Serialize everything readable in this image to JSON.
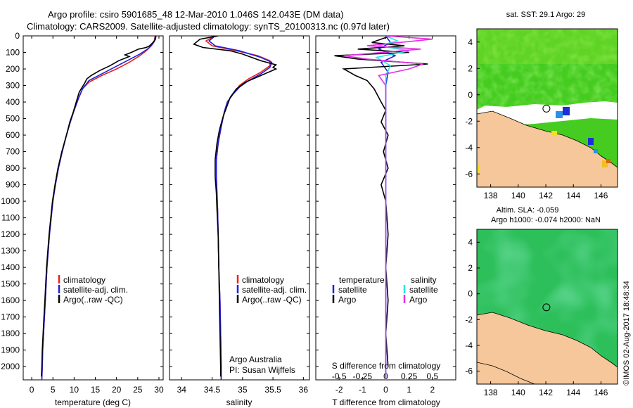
{
  "header": {
    "line1": "Argo profile: csiro 5901685_48 12-Mar-2010 1.046S 142.043E (DM data)",
    "line2": "Climatology: CARS2009. Satellite-adjusted climatology: synTS_20100313.nc (0.97d later)"
  },
  "side_stamp": "©IMOS 02-Aug-2017 18:48:34",
  "colors": {
    "climatology": "#e8231d",
    "satellite": "#1f1fdf",
    "argo": "#000000",
    "salinity_satellite": "#22e6e6",
    "salinity_argo": "#e62ee6",
    "land": "#f6c79a",
    "ocean_sst": "#55d62a",
    "ocean_sla": "#2fc67a"
  },
  "chart_data": [
    {
      "type": "line",
      "panel": "temperature",
      "xlabel": "temperature (deg C)",
      "ylabel": "",
      "xlim": [
        -2,
        31
      ],
      "ylim": [
        2080,
        0
      ],
      "xticks": [
        0,
        5,
        10,
        15,
        20,
        25,
        30
      ],
      "yticks": [
        0,
        100,
        200,
        300,
        400,
        500,
        600,
        700,
        800,
        900,
        1000,
        1100,
        1200,
        1300,
        1400,
        1500,
        1600,
        1700,
        1800,
        1900,
        2000
      ],
      "legend": [
        "climatology",
        "satellite-adj. clim.",
        "Argo(..raw -QC)"
      ],
      "series": [
        {
          "name": "climatology",
          "color": "#e8231d",
          "points": [
            [
              29.1,
              0
            ],
            [
              28.9,
              30
            ],
            [
              28.2,
              60
            ],
            [
              27.0,
              90
            ],
            [
              25.5,
              120
            ],
            [
              23.0,
              160
            ],
            [
              20.0,
              200
            ],
            [
              16.5,
              240
            ],
            [
              13.5,
              280
            ],
            [
              12.0,
              320
            ],
            [
              11.0,
              380
            ],
            [
              10.0,
              450
            ],
            [
              9.0,
              530
            ],
            [
              8.2,
              600
            ],
            [
              7.2,
              700
            ],
            [
              6.3,
              800
            ],
            [
              5.6,
              900
            ],
            [
              5.0,
              1000
            ],
            [
              4.6,
              1100
            ],
            [
              4.2,
              1200
            ],
            [
              3.9,
              1300
            ],
            [
              3.6,
              1400
            ],
            [
              3.4,
              1500
            ],
            [
              3.2,
              1600
            ],
            [
              3.0,
              1700
            ],
            [
              2.8,
              1800
            ],
            [
              2.6,
              1900
            ],
            [
              2.5,
              2000
            ],
            [
              2.4,
              2080
            ]
          ]
        },
        {
          "name": "satellite-adj. clim.",
          "color": "#1f1fdf",
          "points": [
            [
              29.2,
              0
            ],
            [
              29.0,
              30
            ],
            [
              28.5,
              50
            ],
            [
              27.3,
              80
            ],
            [
              25.5,
              110
            ],
            [
              22.5,
              150
            ],
            [
              19.5,
              190
            ],
            [
              16.5,
              230
            ],
            [
              13.5,
              270
            ],
            [
              12.0,
              320
            ],
            [
              11.0,
              380
            ],
            [
              10.0,
              450
            ],
            [
              9.0,
              530
            ],
            [
              8.2,
              600
            ],
            [
              7.2,
              700
            ],
            [
              6.3,
              800
            ],
            [
              5.6,
              900
            ],
            [
              5.0,
              1000
            ],
            [
              4.6,
              1100
            ],
            [
              4.2,
              1200
            ],
            [
              3.9,
              1300
            ],
            [
              3.6,
              1400
            ],
            [
              3.4,
              1500
            ],
            [
              3.2,
              1600
            ],
            [
              3.0,
              1700
            ],
            [
              2.8,
              1800
            ],
            [
              2.6,
              1900
            ],
            [
              2.5,
              2000
            ],
            [
              2.4,
              2080
            ]
          ]
        },
        {
          "name": "Argo(..raw -QC)",
          "color": "#000000",
          "points": [
            [
              29.3,
              0
            ],
            [
              29.2,
              20
            ],
            [
              28.6,
              40
            ],
            [
              27.8,
              60
            ],
            [
              27.0,
              70
            ],
            [
              25.2,
              80
            ],
            [
              23.5,
              100
            ],
            [
              22.0,
              115
            ],
            [
              23.0,
              125
            ],
            [
              20.5,
              150
            ],
            [
              18.5,
              180
            ],
            [
              16.0,
              210
            ],
            [
              14.0,
              240
            ],
            [
              13.0,
              260
            ],
            [
              12.4,
              290
            ],
            [
              11.2,
              340
            ],
            [
              10.5,
              400
            ],
            [
              9.8,
              460
            ],
            [
              9.0,
              520
            ],
            [
              8.2,
              600
            ],
            [
              7.1,
              700
            ],
            [
              6.2,
              800
            ],
            [
              5.5,
              900
            ],
            [
              4.9,
              1000
            ],
            [
              4.5,
              1100
            ],
            [
              4.1,
              1200
            ],
            [
              3.8,
              1300
            ],
            [
              3.5,
              1400
            ],
            [
              3.3,
              1500
            ],
            [
              3.1,
              1600
            ],
            [
              2.9,
              1700
            ],
            [
              2.7,
              1800
            ],
            [
              2.5,
              1900
            ],
            [
              2.4,
              2000
            ],
            [
              2.3,
              2060
            ]
          ]
        }
      ]
    },
    {
      "type": "line",
      "panel": "salinity",
      "xlabel": "salinity",
      "xlim": [
        33.8,
        36.1
      ],
      "ylim": [
        2080,
        0
      ],
      "xticks": [
        34,
        34.5,
        35,
        35.5,
        36
      ],
      "legend": [
        "climatology",
        "satellite-adj. clim.",
        "Argo(..raw -QC)"
      ],
      "annotation": [
        "Argo Australia",
        "PI: Susan Wijffels"
      ],
      "series": [
        {
          "name": "climatology",
          "color": "#e8231d",
          "points": [
            [
              34.55,
              0
            ],
            [
              34.4,
              30
            ],
            [
              34.5,
              60
            ],
            [
              34.9,
              90
            ],
            [
              35.25,
              120
            ],
            [
              35.45,
              150
            ],
            [
              35.45,
              180
            ],
            [
              35.3,
              220
            ],
            [
              35.1,
              260
            ],
            [
              34.95,
              300
            ],
            [
              34.85,
              350
            ],
            [
              34.75,
              400
            ],
            [
              34.7,
              460
            ],
            [
              34.65,
              550
            ],
            [
              34.6,
              650
            ],
            [
              34.57,
              750
            ],
            [
              34.57,
              850
            ],
            [
              34.58,
              950
            ],
            [
              34.59,
              1050
            ],
            [
              34.6,
              1200
            ],
            [
              34.61,
              1400
            ],
            [
              34.63,
              1600
            ],
            [
              34.64,
              1800
            ],
            [
              34.65,
              2000
            ],
            [
              34.65,
              2080
            ]
          ]
        },
        {
          "name": "satellite-adj. clim.",
          "color": "#1f1fdf",
          "points": [
            [
              34.55,
              0
            ],
            [
              34.45,
              30
            ],
            [
              34.55,
              60
            ],
            [
              34.95,
              90
            ],
            [
              35.3,
              130
            ],
            [
              35.48,
              160
            ],
            [
              35.45,
              190
            ],
            [
              35.3,
              230
            ],
            [
              35.1,
              270
            ],
            [
              34.95,
              310
            ],
            [
              34.85,
              350
            ],
            [
              34.75,
              400
            ],
            [
              34.7,
              460
            ],
            [
              34.65,
              550
            ],
            [
              34.6,
              650
            ],
            [
              34.57,
              750
            ],
            [
              34.57,
              850
            ],
            [
              34.58,
              950
            ],
            [
              34.59,
              1050
            ],
            [
              34.6,
              1200
            ],
            [
              34.61,
              1400
            ],
            [
              34.63,
              1600
            ],
            [
              34.64,
              1800
            ],
            [
              34.65,
              2000
            ],
            [
              34.65,
              2080
            ]
          ]
        },
        {
          "name": "Argo(..raw -QC)",
          "color": "#000000",
          "points": [
            [
              34.6,
              0
            ],
            [
              34.3,
              20
            ],
            [
              34.2,
              50
            ],
            [
              34.35,
              70
            ],
            [
              34.8,
              90
            ],
            [
              34.9,
              100
            ],
            [
              35.0,
              110
            ],
            [
              35.3,
              150
            ],
            [
              35.45,
              165
            ],
            [
              35.55,
              175
            ],
            [
              35.5,
              190
            ],
            [
              35.55,
              200
            ],
            [
              35.3,
              240
            ],
            [
              35.05,
              280
            ],
            [
              34.9,
              320
            ],
            [
              34.8,
              370
            ],
            [
              34.75,
              420
            ],
            [
              34.68,
              490
            ],
            [
              34.62,
              570
            ],
            [
              34.58,
              650
            ],
            [
              34.55,
              750
            ],
            [
              34.55,
              850
            ],
            [
              34.57,
              950
            ],
            [
              34.58,
              1050
            ],
            [
              34.6,
              1200
            ],
            [
              34.61,
              1400
            ],
            [
              34.62,
              1600
            ],
            [
              34.63,
              1800
            ],
            [
              34.64,
              2000
            ],
            [
              34.64,
              2060
            ]
          ]
        }
      ]
    },
    {
      "type": "line",
      "panel": "difference",
      "xlabel_top": "S difference from climatology",
      "xlabel": "T difference from climatology",
      "xlim": [
        -3,
        3
      ],
      "ylim": [
        2080,
        0
      ],
      "xticks_T": [
        -2,
        -1,
        0,
        1,
        2
      ],
      "xticks_S": [
        "-0.5",
        "-0.25",
        "0",
        "0.25",
        "0.5"
      ],
      "legend_temperature_title": "temperature",
      "legend_salinity_title": "salinity",
      "legend": [
        "satellite",
        "Argo",
        "satellite",
        "Argo"
      ],
      "series": [
        {
          "name": "temperature satellite",
          "color": "#1f1fdf",
          "points": [
            [
              0,
              0
            ],
            [
              0.2,
              40
            ],
            [
              -0.3,
              80
            ],
            [
              0.4,
              120
            ],
            [
              -0.2,
              160
            ],
            [
              0.1,
              220
            ],
            [
              0,
              300
            ],
            [
              0,
              2080
            ]
          ]
        },
        {
          "name": "temperature Argo",
          "color": "#000000",
          "points": [
            [
              0.2,
              0
            ],
            [
              -0.6,
              40
            ],
            [
              0.8,
              60
            ],
            [
              -1.2,
              80
            ],
            [
              1.0,
              100
            ],
            [
              -2.2,
              120
            ],
            [
              -1.2,
              140
            ],
            [
              1.8,
              170
            ],
            [
              -1.8,
              200
            ],
            [
              -1.3,
              240
            ],
            [
              -0.8,
              270
            ],
            [
              -0.5,
              320
            ],
            [
              -0.2,
              400
            ],
            [
              0,
              450
            ],
            [
              -0.2,
              520
            ],
            [
              0.1,
              600
            ],
            [
              -0.1,
              700
            ],
            [
              0.1,
              800
            ],
            [
              -0.2,
              900
            ],
            [
              0,
              1000
            ],
            [
              0.1,
              1200
            ],
            [
              0,
              1400
            ],
            [
              0.1,
              1600
            ],
            [
              0,
              1800
            ],
            [
              0.1,
              2000
            ]
          ]
        },
        {
          "name": "salinity satellite",
          "color": "#22e6e6",
          "points": [
            [
              0,
              0
            ],
            [
              0.5,
              30
            ],
            [
              -0.3,
              60
            ],
            [
              1.0,
              90
            ],
            [
              -0.4,
              130
            ],
            [
              0.2,
              180
            ],
            [
              0,
              240
            ],
            [
              0,
              2080
            ]
          ]
        },
        {
          "name": "salinity Argo",
          "color": "#e62ee6",
          "points": [
            [
              0,
              0
            ],
            [
              2.0,
              20
            ],
            [
              -0.8,
              60
            ],
            [
              1.5,
              80
            ],
            [
              -1.8,
              120
            ],
            [
              -0.8,
              140
            ],
            [
              1.6,
              170
            ],
            [
              1.0,
              200
            ],
            [
              -0.3,
              240
            ],
            [
              0,
              300
            ],
            [
              0,
              2080
            ]
          ]
        }
      ]
    },
    {
      "type": "heatmap",
      "panel": "map-sst",
      "title": "sat. SST: 29.1 Argo: 29",
      "xticks": [
        138,
        140,
        142,
        144,
        146
      ],
      "yticks": [
        4,
        2,
        0,
        -2,
        -4,
        -6
      ],
      "xlim": [
        137,
        147.2
      ],
      "ylim": [
        -7,
        5
      ],
      "marker": {
        "lon": 142.043,
        "lat": -1.046
      }
    },
    {
      "type": "heatmap",
      "panel": "map-sla",
      "title_line1": "Altim. SLA: -0.059",
      "title_line2": "Argo h1000: -0.074 h2000: NaN",
      "xticks": [
        138,
        140,
        142,
        144,
        146
      ],
      "yticks": [
        4,
        2,
        0,
        -2,
        -4,
        -6
      ],
      "xlim": [
        137,
        147.2
      ],
      "ylim": [
        -7,
        5
      ],
      "marker": {
        "lon": 142.043,
        "lat": -1.046
      }
    }
  ]
}
